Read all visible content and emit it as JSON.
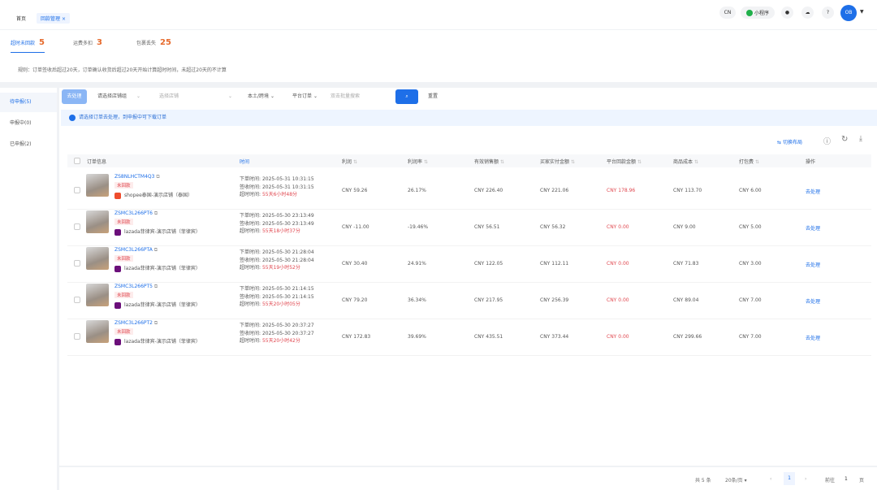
{
  "topbar": {
    "tabs": [
      {
        "label": "首页"
      },
      {
        "label": "回款管理",
        "closable": "×"
      }
    ],
    "lang": "CN",
    "mini_program": "小程序",
    "avatar": "OB",
    "icons": [
      "bell-icon",
      "cloud-download-icon",
      "help-icon",
      "chevron-down-icon"
    ]
  },
  "summary": {
    "stats": [
      {
        "label": "超时未回款",
        "value": "5"
      },
      {
        "label": "运费多扣",
        "value": "3"
      },
      {
        "label": "包裹丢失",
        "value": "25"
      }
    ],
    "rule": "规则：订单签收后超过20天，订单确认收货后超过20天开始计算超时时间，未超过20天的不计算"
  },
  "sidebar": {
    "items": [
      {
        "label": "待申报(5)",
        "active": true
      },
      {
        "label": "申报中(0)"
      },
      {
        "label": "已申报(2)"
      }
    ]
  },
  "filters": {
    "batch": "去处理",
    "store_select": "请选择店铺组",
    "store_placeholder": "选择店铺",
    "site": "本土/跨境",
    "order_type": "平台订单",
    "search_placeholder": "双击批量搜索",
    "reset": "重置"
  },
  "info": "请选择订单去处理，到申报中可下载订单",
  "toolbar": {
    "switch_view": "切换布局"
  },
  "columns": [
    "订单信息",
    "时间",
    "利润",
    "利润率",
    "有效销售额",
    "买家实付金额",
    "平台回款金额",
    "商品成本",
    "打包费",
    "操作"
  ],
  "time_labels": {
    "order": "下单时间:",
    "sign": "签收时间:",
    "overdue": "超时时间:"
  },
  "rows": [
    {
      "order_id": "ZS8NLHCTM4Q3",
      "status": "未回款",
      "shop": "shopee泰国-演示店铺（泰国）",
      "shop_color": "#ee4d2d",
      "order_time": "2025-05-31 10:31:15",
      "sign_time": "2025-05-31 10:31:15",
      "overdue": "55天6小时48分",
      "profit": "CNY 59.26",
      "margin": "26.17%",
      "sales": "CNY 226.40",
      "paid": "CNY 221.06",
      "payout": "CNY 178.96",
      "cost": "CNY 113.70",
      "pack": "CNY 6.00",
      "action": "去处理"
    },
    {
      "order_id": "ZSMC3L266PT6",
      "status": "未回款",
      "shop": "lazada菲律宾-演示店铺（菲律宾）",
      "shop_color": "#6b0f7a",
      "order_time": "2025-05-30 23:13:49",
      "sign_time": "2025-05-30 23:13:49",
      "overdue": "55天18小时37分",
      "profit": "CNY -11.00",
      "margin": "-19.46%",
      "sales": "CNY 56.51",
      "paid": "CNY 56.32",
      "payout": "CNY 0.00",
      "cost": "CNY 9.00",
      "pack": "CNY 5.00",
      "action": "去处理"
    },
    {
      "order_id": "ZSMC3L266PTA",
      "status": "未回款",
      "shop": "lazada菲律宾-演示店铺（菲律宾）",
      "shop_color": "#6b0f7a",
      "order_time": "2025-05-30 21:28:04",
      "sign_time": "2025-05-30 21:28:04",
      "overdue": "55天19小时52分",
      "profit": "CNY 30.40",
      "margin": "24.91%",
      "sales": "CNY 122.05",
      "paid": "CNY 112.11",
      "payout": "CNY 0.00",
      "cost": "CNY 71.83",
      "pack": "CNY 3.00",
      "action": "去处理"
    },
    {
      "order_id": "ZSMC3L266PT5",
      "status": "未回款",
      "shop": "lazada菲律宾-演示店铺（菲律宾）",
      "shop_color": "#6b0f7a",
      "order_time": "2025-05-30 21:14:15",
      "sign_time": "2025-05-30 21:14:15",
      "overdue": "55天20小时05分",
      "profit": "CNY 79.20",
      "margin": "36.34%",
      "sales": "CNY 217.95",
      "paid": "CNY 256.39",
      "payout": "CNY 0.00",
      "cost": "CNY 89.04",
      "pack": "CNY 7.00",
      "action": "去处理"
    },
    {
      "order_id": "ZSMC3L266PT2",
      "status": "未回款",
      "shop": "lazada菲律宾-演示店铺（菲律宾）",
      "shop_color": "#6b0f7a",
      "order_time": "2025-05-30 20:37:27",
      "sign_time": "2025-05-30 20:37:27",
      "overdue": "55天20小时42分",
      "profit": "CNY 172.83",
      "margin": "39.69%",
      "sales": "CNY 435.51",
      "paid": "CNY 373.44",
      "payout": "CNY 0.00",
      "cost": "CNY 299.66",
      "pack": "CNY 7.00",
      "action": "去处理"
    }
  ],
  "pager": {
    "total": "共 5 条",
    "page_size": "20条/页",
    "current": "1",
    "goto_label": "前往",
    "goto_value": "1",
    "page_unit": "页",
    "prev": "‹",
    "next": "›"
  },
  "colors": {
    "accent": "#1e6fe8",
    "warning": "#e66a2c",
    "danger": "#e0474f"
  }
}
